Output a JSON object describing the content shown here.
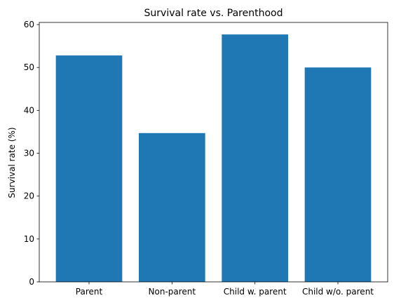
{
  "chart_data": {
    "type": "bar",
    "title": "Survival rate vs. Parenthood",
    "xlabel": "",
    "ylabel": "Survival rate (%)",
    "categories": [
      "Parent",
      "Non-parent",
      "Child w. parent",
      "Child w/o. parent"
    ],
    "values": [
      52.8,
      34.7,
      57.7,
      50.0
    ],
    "ylim": [
      0,
      60.5
    ],
    "yticks": [
      0,
      10,
      20,
      30,
      40,
      50,
      60
    ],
    "grid": false,
    "bar_color": "#1f77b4"
  }
}
